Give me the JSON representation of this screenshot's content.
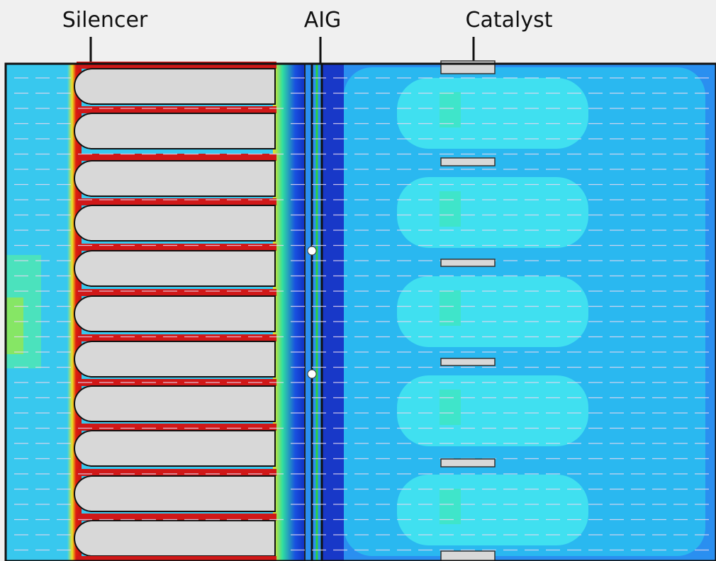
{
  "labels": {
    "silencer": "Silencer",
    "aig": "AIG",
    "catalyst": "Catalyst"
  }
}
